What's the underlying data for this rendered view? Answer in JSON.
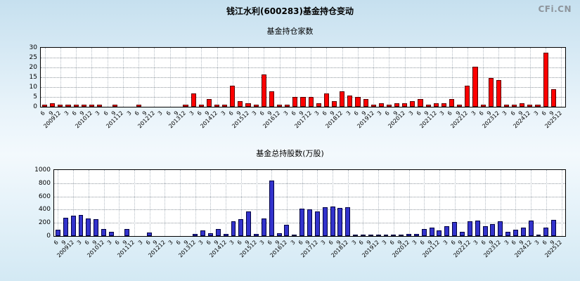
{
  "header": {
    "title": "钱江水利(600283)基金持仓变动",
    "logo": "CFi.CN"
  },
  "chart_data": [
    {
      "type": "bar",
      "title": "基金持仓家数",
      "xlabel": "",
      "ylabel": "",
      "ylim": [
        0,
        30
      ],
      "yticks": [
        0,
        5,
        10,
        15,
        20,
        25,
        30
      ],
      "grid": true,
      "legend_position": "none",
      "bar_color": "#ff0000",
      "bar_border_color": "#5a0000",
      "categories": [
        "6",
        "9",
        "200912",
        "3",
        "6",
        "9",
        "201012",
        "3",
        "6",
        "9",
        "201112",
        "3",
        "6",
        "9",
        "201212",
        "3",
        "6",
        "9",
        "201312",
        "3",
        "6",
        "9",
        "201412",
        "3",
        "6",
        "9",
        "201512",
        "3",
        "6",
        "9",
        "201612",
        "3",
        "6",
        "9",
        "201712",
        "3",
        "6",
        "9",
        "201812",
        "3",
        "6",
        "9",
        "201912",
        "3",
        "6",
        "9",
        "202012",
        "3",
        "6",
        "9",
        "202112",
        "3",
        "6",
        "9",
        "202212",
        "3",
        "6",
        "9",
        "202312",
        "3",
        "6",
        "9",
        "202412",
        "3",
        "6",
        "9",
        "202512"
      ],
      "values": [
        1,
        2,
        1,
        1,
        1,
        1,
        1,
        1,
        0,
        1,
        0,
        0,
        1,
        0,
        0,
        0,
        0,
        0,
        1,
        7,
        1,
        4,
        1,
        1,
        11,
        3,
        2,
        1,
        17,
        8,
        1,
        1,
        5,
        5,
        5,
        2,
        7,
        3,
        8,
        6,
        5,
        4,
        1,
        2,
        1,
        2,
        2,
        3,
        4,
        1,
        2,
        2,
        4,
        1,
        11,
        21,
        1,
        15,
        14,
        1,
        1,
        2,
        1,
        1,
        28,
        9,
        0
      ]
    },
    {
      "type": "bar",
      "title": "基金总持股数(万股)",
      "xlabel": "",
      "ylabel": "",
      "ylim": [
        0,
        1000
      ],
      "yticks": [
        0,
        200,
        400,
        600,
        800,
        1000
      ],
      "grid": true,
      "legend_position": "none",
      "bar_color": "#3333cc",
      "bar_border_color": "#000040",
      "categories": [
        "6",
        "9",
        "200912",
        "3",
        "6",
        "9",
        "201012",
        "3",
        "6",
        "9",
        "201112",
        "3",
        "6",
        "9",
        "201212",
        "3",
        "6",
        "9",
        "201312",
        "3",
        "6",
        "9",
        "201412",
        "3",
        "6",
        "9",
        "201512",
        "3",
        "6",
        "9",
        "201612",
        "3",
        "6",
        "9",
        "201712",
        "3",
        "6",
        "9",
        "201812",
        "3",
        "6",
        "9",
        "201912",
        "3",
        "6",
        "9",
        "202012",
        "3",
        "6",
        "9",
        "202112",
        "3",
        "6",
        "9",
        "202212",
        "3",
        "6",
        "9",
        "202312",
        "3",
        "6",
        "9",
        "202412",
        "3",
        "6",
        "9",
        "202512"
      ],
      "values": [
        100,
        280,
        310,
        330,
        270,
        260,
        110,
        60,
        0,
        110,
        0,
        0,
        50,
        0,
        0,
        0,
        0,
        0,
        30,
        90,
        40,
        110,
        30,
        230,
        260,
        380,
        30,
        270,
        860,
        40,
        170,
        10,
        420,
        410,
        380,
        450,
        460,
        440,
        450,
        20,
        10,
        15,
        10,
        10,
        5,
        10,
        30,
        30,
        110,
        130,
        90,
        150,
        220,
        60,
        230,
        240,
        150,
        180,
        230,
        60,
        100,
        130,
        240,
        10,
        130,
        250,
        0
      ]
    }
  ]
}
